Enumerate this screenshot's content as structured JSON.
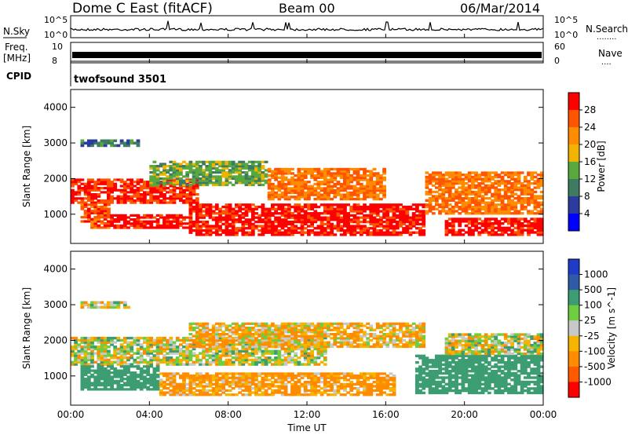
{
  "header": {
    "station": "Dome C East (fitACF)",
    "beam": "Beam 00",
    "date": "06/Mar/2014"
  },
  "side_labels": {
    "nsky": "N.Sky",
    "nsearch": "N.Search",
    "nsearch_dots": "........",
    "freq": "Freq.",
    "mhz": "[MHz]",
    "nave": "Nave",
    "nave_dots": "....",
    "cpid": "CPID"
  },
  "small_panels": {
    "noise": {
      "ticks_left": [
        "10^5",
        "10^0"
      ],
      "ticks_right": [
        "10^5",
        "10^0"
      ]
    },
    "freq": {
      "ticks_left": [
        "10",
        "8"
      ],
      "ticks_right": [
        "60",
        "0"
      ]
    },
    "cpid_text": "twofsound 3501"
  },
  "time_ticks": [
    "00:00",
    "04:00",
    "08:00",
    "12:00",
    "16:00",
    "20:00",
    "00:00"
  ],
  "time_axis_label": "Time UT",
  "range_ticks": [
    "1000",
    "2000",
    "3000",
    "4000"
  ],
  "colors": {
    "power": [
      "#0000ff",
      "#2b3c9e",
      "#3f7b63",
      "#57a83e",
      "#f0b400",
      "#ff8c00",
      "#ff5500",
      "#ff0000"
    ],
    "velocity": [
      "#ff0000",
      "#ff5a00",
      "#ff8c00",
      "#f5b400",
      "#c8c8c8",
      "#6fce3f",
      "#3c9c72",
      "#2e5aa8",
      "#1e3cc8"
    ]
  },
  "chart_data": [
    {
      "type": "heatmap",
      "title": "",
      "xlabel": "",
      "ylabel": "Slant Range [km]",
      "xlim": [
        "00:00",
        "24:00"
      ],
      "ylim": [
        180,
        4500
      ],
      "colorbar": {
        "label": "Power [dB]",
        "ticks": [
          "4",
          "8",
          "12",
          "16",
          "20",
          "24",
          "28"
        ],
        "range": [
          0,
          32
        ]
      },
      "bands": [
        {
          "t0": 0.0,
          "t1": 6.5,
          "r0": 1300,
          "r1": 2000,
          "level": 28
        },
        {
          "t0": 0.5,
          "t1": 2.0,
          "r0": 600,
          "r1": 1300,
          "level": 26
        },
        {
          "t0": 2.0,
          "t1": 6.0,
          "r0": 600,
          "r1": 1000,
          "level": 30
        },
        {
          "t0": 4.0,
          "t1": 10.0,
          "r0": 1800,
          "r1": 2500,
          "level": 14
        },
        {
          "t0": 6.0,
          "t1": 18.0,
          "r0": 400,
          "r1": 1300,
          "level": 30
        },
        {
          "t0": 10.0,
          "t1": 16.0,
          "r0": 1400,
          "r1": 2300,
          "level": 24
        },
        {
          "t0": 18.0,
          "t1": 24.0,
          "r0": 1000,
          "r1": 2200,
          "level": 24
        },
        {
          "t0": 19.0,
          "t1": 24.0,
          "r0": 400,
          "r1": 900,
          "level": 30
        },
        {
          "t0": 0.5,
          "t1": 3.5,
          "r0": 2900,
          "r1": 3100,
          "level": 10
        }
      ]
    },
    {
      "type": "heatmap",
      "title": "",
      "xlabel": "Time UT",
      "ylabel": "Slant Range [km]",
      "xlim": [
        "00:00",
        "24:00"
      ],
      "ylim": [
        180,
        4500
      ],
      "colorbar": {
        "label": "Velocity [m s^-1]",
        "ticks": [
          "1000",
          "500",
          "100",
          "25",
          "-25",
          "-100",
          "-500",
          "-1000"
        ],
        "range": [
          -1000,
          1000
        ]
      },
      "bands": [
        {
          "t0": 0.0,
          "t1": 13.0,
          "r0": 1300,
          "r1": 2100,
          "level": 0
        },
        {
          "t0": 0.5,
          "t1": 4.5,
          "r0": 600,
          "r1": 1300,
          "level": 300
        },
        {
          "t0": 4.5,
          "t1": 16.5,
          "r0": 450,
          "r1": 1100,
          "level": -150
        },
        {
          "t0": 6.0,
          "t1": 18.0,
          "r0": 1800,
          "r1": 2500,
          "level": -80
        },
        {
          "t0": 17.5,
          "t1": 24.0,
          "r0": 500,
          "r1": 1600,
          "level": 300
        },
        {
          "t0": 19.0,
          "t1": 24.0,
          "r0": 1600,
          "r1": 2200,
          "level": 0
        },
        {
          "t0": 0.5,
          "t1": 3.0,
          "r0": 2900,
          "r1": 3100,
          "level": 0
        }
      ]
    }
  ]
}
